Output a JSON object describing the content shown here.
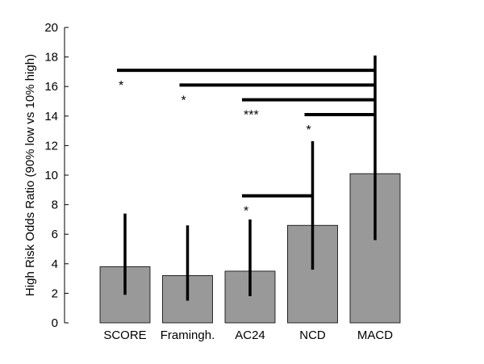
{
  "chart_data": {
    "type": "bar",
    "ylabel": "High Risk Odds Ratio (90% low vs 10% high)",
    "xlabel": "",
    "ylim": [
      0,
      20
    ],
    "yticks": [
      0,
      2,
      4,
      6,
      8,
      10,
      12,
      14,
      16,
      18,
      20
    ],
    "grid": false,
    "categories": [
      "SCORE",
      "Framingh.",
      "AC24",
      "NCD",
      "MACD"
    ],
    "values": [
      3.8,
      3.2,
      3.5,
      6.6,
      10.1
    ],
    "error_bars": [
      {
        "low": 1.9,
        "high": 7.4
      },
      {
        "low": 1.5,
        "high": 6.6
      },
      {
        "low": 1.8,
        "high": 7.0
      },
      {
        "low": 3.6,
        "high": 12.3
      },
      {
        "low": 5.6,
        "high": 18.1
      }
    ],
    "significance": [
      {
        "from": "SCORE",
        "to": "MACD",
        "y": 17.1,
        "label": "*"
      },
      {
        "from": "Framingh.",
        "to": "MACD",
        "y": 16.1,
        "label": "*"
      },
      {
        "from": "AC24",
        "to": "MACD",
        "y": 15.1,
        "label": "***"
      },
      {
        "from": "NCD",
        "to": "MACD",
        "y": 14.1,
        "label": "*"
      },
      {
        "from": "AC24",
        "to": "NCD",
        "y": 8.6,
        "label": "*"
      }
    ],
    "colors": {
      "bar": "#999999",
      "bar_edge": "#000000",
      "marks": "#000000"
    }
  }
}
